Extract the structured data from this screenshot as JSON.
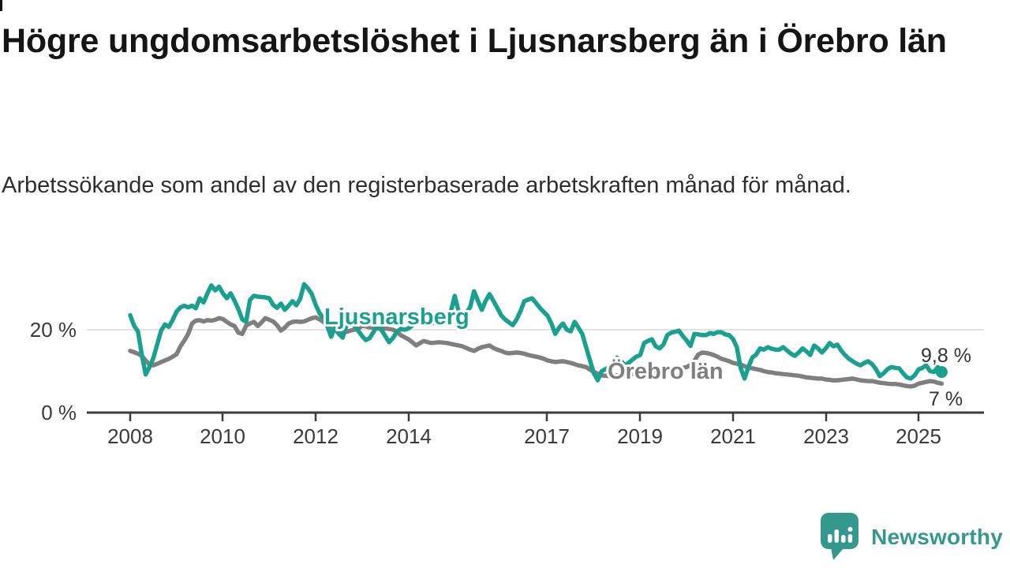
{
  "header": {
    "title": "Högre ungdomsarbetslöshet i Ljusnarsberg än i Örebro län",
    "subtitle": "Arbetssökande som andel av den registerbaserade arbetskraften månad för månad."
  },
  "chart_data": {
    "type": "line",
    "unit": "%",
    "frequency": "monthly",
    "x_start": "2008-01",
    "x_end": "2025-07",
    "ylim": [
      0,
      35
    ],
    "grid": "horizontal gridline at 20% only",
    "legend_position": "inline labels on lines",
    "y_ticks": [
      {
        "value": 20,
        "label": "20 %"
      },
      {
        "value": 0,
        "label": "0 %"
      }
    ],
    "x_ticks": [
      {
        "year": 2008,
        "label": "2008"
      },
      {
        "year": 2010,
        "label": "2010"
      },
      {
        "year": 2012,
        "label": "2012"
      },
      {
        "year": 2014,
        "label": "2014"
      },
      {
        "year": 2017,
        "label": "2017"
      },
      {
        "year": 2019,
        "label": "2019"
      },
      {
        "year": 2021,
        "label": "2021"
      },
      {
        "year": 2023,
        "label": "2023"
      },
      {
        "year": 2025,
        "label": "2025"
      }
    ],
    "series": [
      {
        "name": "Örebro län",
        "color": "#7f7f7f",
        "end_label": "7 %",
        "values": [
          14.9,
          14.6,
          14.2,
          13.7,
          12.6,
          11.6,
          11.4,
          11.8,
          12.2,
          12.6,
          13.0,
          13.5,
          14.1,
          16.0,
          17.4,
          19.0,
          21.5,
          22.2,
          22.3,
          22.0,
          22.3,
          22.2,
          22.4,
          22.8,
          22.6,
          21.9,
          21.3,
          20.9,
          19.3,
          19.0,
          21.0,
          21.5,
          21.9,
          20.9,
          21.8,
          22.8,
          22.4,
          22.0,
          21.1,
          19.8,
          20.5,
          21.5,
          21.9,
          22.0,
          21.9,
          22.0,
          22.4,
          22.8,
          23.0,
          22.5,
          21.9,
          21.0,
          20.2,
          19.8,
          19.5,
          19.3,
          19.5,
          19.8,
          20.0,
          20.2,
          21.0,
          20.8,
          20.6,
          20.5,
          20.3,
          20.2,
          20.3,
          20.2,
          20.0,
          19.6,
          18.7,
          18.2,
          17.7,
          17.0,
          16.2,
          16.8,
          17.3,
          17.0,
          16.8,
          16.9,
          17.0,
          16.9,
          16.8,
          16.6,
          16.4,
          16.2,
          16.0,
          15.6,
          15.2,
          14.9,
          15.4,
          15.8,
          16.0,
          16.2,
          15.6,
          15.2,
          14.9,
          14.5,
          14.3,
          14.4,
          14.5,
          14.4,
          14.2,
          13.9,
          13.7,
          13.5,
          13.3,
          13.0,
          12.6,
          12.4,
          12.2,
          12.3,
          12.4,
          12.2,
          12.0,
          11.7,
          11.4,
          11.2,
          11.0,
          10.4,
          9.8,
          9.4,
          9.0,
          8.9,
          8.8,
          8.9,
          9.0,
          9.0,
          9.1,
          9.2,
          9.3,
          9.4,
          9.5,
          9.6,
          9.7,
          9.8,
          9.9,
          10.0,
          10.2,
          10.3,
          10.4,
          10.5,
          10.6,
          10.8,
          11.0,
          11.5,
          12.5,
          14.0,
          14.5,
          14.4,
          14.2,
          13.9,
          13.5,
          13.0,
          12.7,
          12.4,
          12.0,
          11.8,
          11.6,
          11.2,
          10.8,
          10.7,
          10.5,
          10.3,
          10.0,
          9.8,
          9.7,
          9.5,
          9.4,
          9.3,
          9.2,
          9.1,
          9.0,
          8.9,
          8.7,
          8.5,
          8.4,
          8.3,
          8.2,
          8.2,
          8.0,
          7.9,
          7.8,
          7.8,
          7.9,
          8.0,
          8.1,
          8.2,
          8.0,
          7.8,
          7.7,
          7.6,
          7.6,
          7.4,
          7.2,
          7.1,
          7.0,
          6.9,
          6.9,
          6.8,
          6.6,
          6.4,
          6.3,
          6.5,
          7.0,
          7.2,
          7.4,
          7.6,
          7.5,
          7.2,
          7.0
        ]
      },
      {
        "name": "Ljusnarsberg",
        "color": "#1aa08f",
        "end_label": "9,8 %",
        "values": [
          23.5,
          21.0,
          19.6,
          14.0,
          9.2,
          11.0,
          13.2,
          16.5,
          19.8,
          21.3,
          20.7,
          22.4,
          24.4,
          25.4,
          25.8,
          25.4,
          25.8,
          25.2,
          27.6,
          26.6,
          28.8,
          30.7,
          29.5,
          30.4,
          28.8,
          27.6,
          28.8,
          27.0,
          25.0,
          22.5,
          21.9,
          27.2,
          28.2,
          28.0,
          27.9,
          27.8,
          27.6,
          26.0,
          25.3,
          26.3,
          24.8,
          25.8,
          26.9,
          25.9,
          27.5,
          31.0,
          30.0,
          28.6,
          26.0,
          24.0,
          22.8,
          21.0,
          18.3,
          20.6,
          19.0,
          18.1,
          21.1,
          22.1,
          21.0,
          19.8,
          18.5,
          17.5,
          18.0,
          19.5,
          21.0,
          20.0,
          18.5,
          17.0,
          18.0,
          19.5,
          20.2,
          20.0,
          20.3,
          21.0,
          21.8,
          22.3,
          22.5,
          22.0,
          21.5,
          22.0,
          23.5,
          24.0,
          23.5,
          24.5,
          28.2,
          24.5,
          23.5,
          24.0,
          25.5,
          29.3,
          27.0,
          24.8,
          27.0,
          28.6,
          27.0,
          25.3,
          23.5,
          22.5,
          21.8,
          21.1,
          22.5,
          24.5,
          26.9,
          27.3,
          27.6,
          26.5,
          25.3,
          24.3,
          23.4,
          21.5,
          19.0,
          20.5,
          21.5,
          20.0,
          19.6,
          21.9,
          20.5,
          19.0,
          15.8,
          12.6,
          9.5,
          7.8,
          10.0,
          10.5,
          11.0,
          12.0,
          13.3,
          12.5,
          11.4,
          12.0,
          12.8,
          13.5,
          13.9,
          16.8,
          17.3,
          17.7,
          16.0,
          15.5,
          16.4,
          18.7,
          19.3,
          19.5,
          19.8,
          18.5,
          17.4,
          16.1,
          19.0,
          18.9,
          18.7,
          18.7,
          19.2,
          19.0,
          19.4,
          19.4,
          18.9,
          18.7,
          17.8,
          15.8,
          10.7,
          8.2,
          11.0,
          13.3,
          14.0,
          15.5,
          15.2,
          15.8,
          15.4,
          15.2,
          15.2,
          15.8,
          15.0,
          14.2,
          13.7,
          14.5,
          15.5,
          14.8,
          13.9,
          16.2,
          15.5,
          14.5,
          15.5,
          16.8,
          16.0,
          16.4,
          15.0,
          13.9,
          13.0,
          12.4,
          11.8,
          11.4,
          12.0,
          12.4,
          11.7,
          10.5,
          8.8,
          9.5,
          10.5,
          11.0,
          10.8,
          10.7,
          9.5,
          8.5,
          8.2,
          9.0,
          10.4,
          10.8,
          11.4,
          10.0,
          9.8,
          11.0,
          9.8
        ]
      }
    ]
  },
  "footer": {
    "brand": "Newsworthy"
  },
  "colors": {
    "accent_teal": "#1aa08f",
    "series_gray": "#7f7f7f",
    "gridline": "#d9d9d9",
    "axis": "#3c3c3c",
    "logo_teal": "#35988e"
  }
}
